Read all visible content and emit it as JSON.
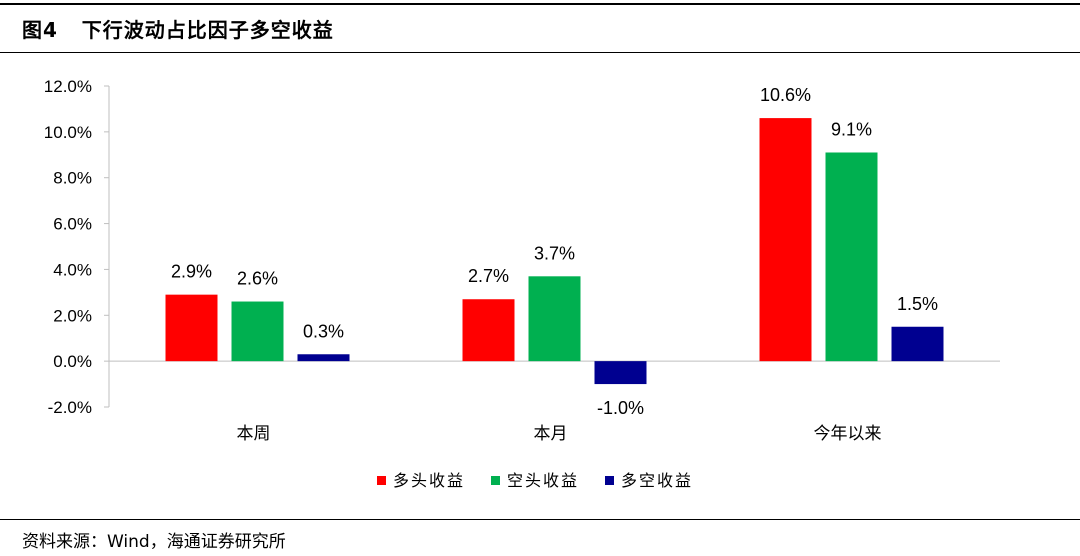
{
  "figure": {
    "title": "图4   下行波动占比因子多空收益",
    "source": "资料来源：Wind，海通证券研究所"
  },
  "chart_data": {
    "type": "bar",
    "categories": [
      "本周",
      "本月",
      "今年以来"
    ],
    "series": [
      {
        "name": "多头收益",
        "color": "#ff0000",
        "values": [
          2.9,
          2.7,
          10.6
        ],
        "labels": [
          "2.9%",
          "2.7%",
          "10.6%"
        ]
      },
      {
        "name": "空头收益",
        "color": "#00b050",
        "values": [
          2.6,
          3.7,
          9.1
        ],
        "labels": [
          "2.6%",
          "3.7%",
          "9.1%"
        ]
      },
      {
        "name": "多空收益",
        "color": "#000090",
        "values": [
          0.3,
          -1.0,
          1.5
        ],
        "labels": [
          "0.3%",
          "-1.0%",
          "1.5%"
        ]
      }
    ],
    "ylim": [
      -2,
      12
    ],
    "yticks": [
      -2,
      0,
      2,
      4,
      6,
      8,
      10,
      12
    ],
    "ytick_labels": [
      "-2.0%",
      "0.0%",
      "2.0%",
      "4.0%",
      "6.0%",
      "8.0%",
      "10.0%",
      "12.0%"
    ],
    "grid": false,
    "legend_position": "bottom"
  }
}
